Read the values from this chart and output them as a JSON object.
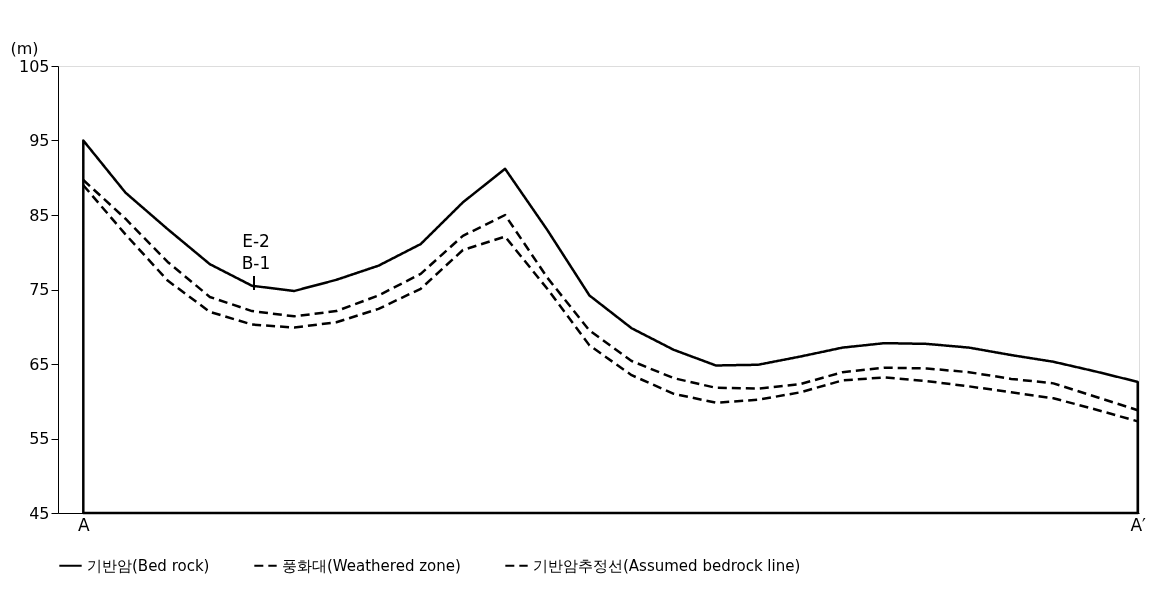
{
  "chart_data": {
    "type": "line",
    "ylabel": "(m)",
    "categories": [
      "A",
      null,
      null,
      null,
      null,
      null,
      null,
      null,
      null,
      null,
      null,
      null,
      null,
      null,
      null,
      null,
      null,
      null,
      null,
      null,
      null,
      null,
      null,
      null,
      null,
      "A′"
    ],
    "ylim": [
      45,
      105
    ],
    "yticks": [
      45,
      55,
      65,
      75,
      85,
      95,
      105
    ],
    "grid": false,
    "legend": "bottom",
    "series": [
      {
        "name": "기반암(Bed rock)",
        "type": "area",
        "color": "#000000",
        "line_style": "solid",
        "values": [
          95,
          88.0,
          83.1,
          78.4,
          75.5,
          74.8,
          76.3,
          78.2,
          81.1,
          86.7,
          91.2,
          83.0,
          74.2,
          69.8,
          66.9,
          64.8,
          64.9,
          66.0,
          67.2,
          67.8,
          67.7,
          67.2,
          66.2,
          65.3,
          64.0,
          62.6
        ]
      },
      {
        "name": "풍화대(Weathered zone)",
        "color": "#000000",
        "line_style": "dashed",
        "values": [
          89.7,
          84.5,
          78.7,
          74.0,
          72.1,
          71.4,
          72.1,
          74.2,
          77.1,
          82.2,
          85.0,
          76.6,
          69.5,
          65.4,
          63.1,
          61.8,
          61.7,
          62.3,
          63.9,
          64.5,
          64.4,
          63.9,
          63.0,
          62.4,
          60.6,
          58.8
        ]
      },
      {
        "name": "기반암추정선(Assumed bedrock line)",
        "color": "#000000",
        "line_style": "dashed",
        "values": [
          89.0,
          82.4,
          76.2,
          72.0,
          70.3,
          69.9,
          70.6,
          72.4,
          75.1,
          80.3,
          82.1,
          75.1,
          67.5,
          63.5,
          61.0,
          59.8,
          60.2,
          61.2,
          62.8,
          63.2,
          62.7,
          62.0,
          61.2,
          60.4,
          58.9,
          57.3
        ]
      }
    ],
    "annotations": [
      "E-2",
      "B-1"
    ]
  }
}
